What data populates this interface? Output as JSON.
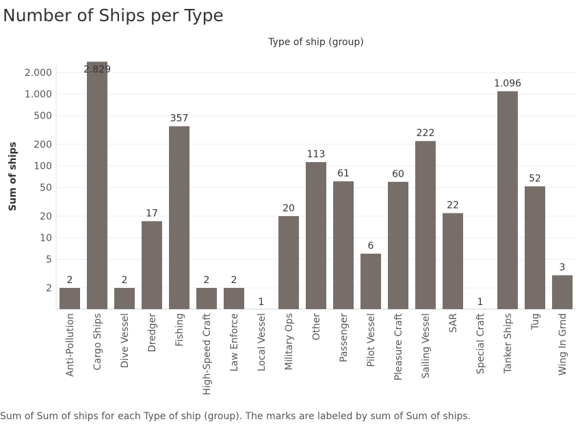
{
  "chart_data": {
    "type": "bar",
    "title": "Number of Ships per Type",
    "column_header": "Type of ship (group)",
    "ylabel": "Sum of ships",
    "yscale": "log",
    "ylim": [
      1.3,
      3000
    ],
    "yticks": [
      2,
      5,
      10,
      20,
      50,
      100,
      200,
      500,
      1000,
      2000
    ],
    "ytick_labels": [
      "2",
      "5",
      "10",
      "20",
      "50",
      "100",
      "200",
      "500",
      "1.000",
      "2.000"
    ],
    "categories": [
      "Anti-Pollution",
      "Cargo Ships",
      "Dive Vessel",
      "Dredger",
      "Fishing",
      "High-Speed Craft",
      "Law Enforce",
      "Local Vessel",
      "Military Ops",
      "Other",
      "Passenger",
      "Pilot Vessel",
      "Pleasure Craft",
      "Sailing Vessel",
      "SAR",
      "Special Craft",
      "Tanker Ships",
      "Tug",
      "Wing In Grnd"
    ],
    "values": [
      2,
      2829,
      2,
      17,
      357,
      2,
      2,
      1,
      20,
      113,
      61,
      6,
      60,
      222,
      22,
      1,
      1096,
      52,
      3
    ],
    "value_labels": [
      "2",
      "2.829",
      "2",
      "17",
      "357",
      "2",
      "2",
      "1",
      "20",
      "113",
      "61",
      "6",
      "60",
      "222",
      "22",
      "1",
      "1.096",
      "52",
      "3"
    ],
    "grid": true,
    "bar_color": "#786e69",
    "caption": "Sum of Sum of ships for each Type of ship (group).  The marks are labeled by sum of Sum of ships."
  }
}
